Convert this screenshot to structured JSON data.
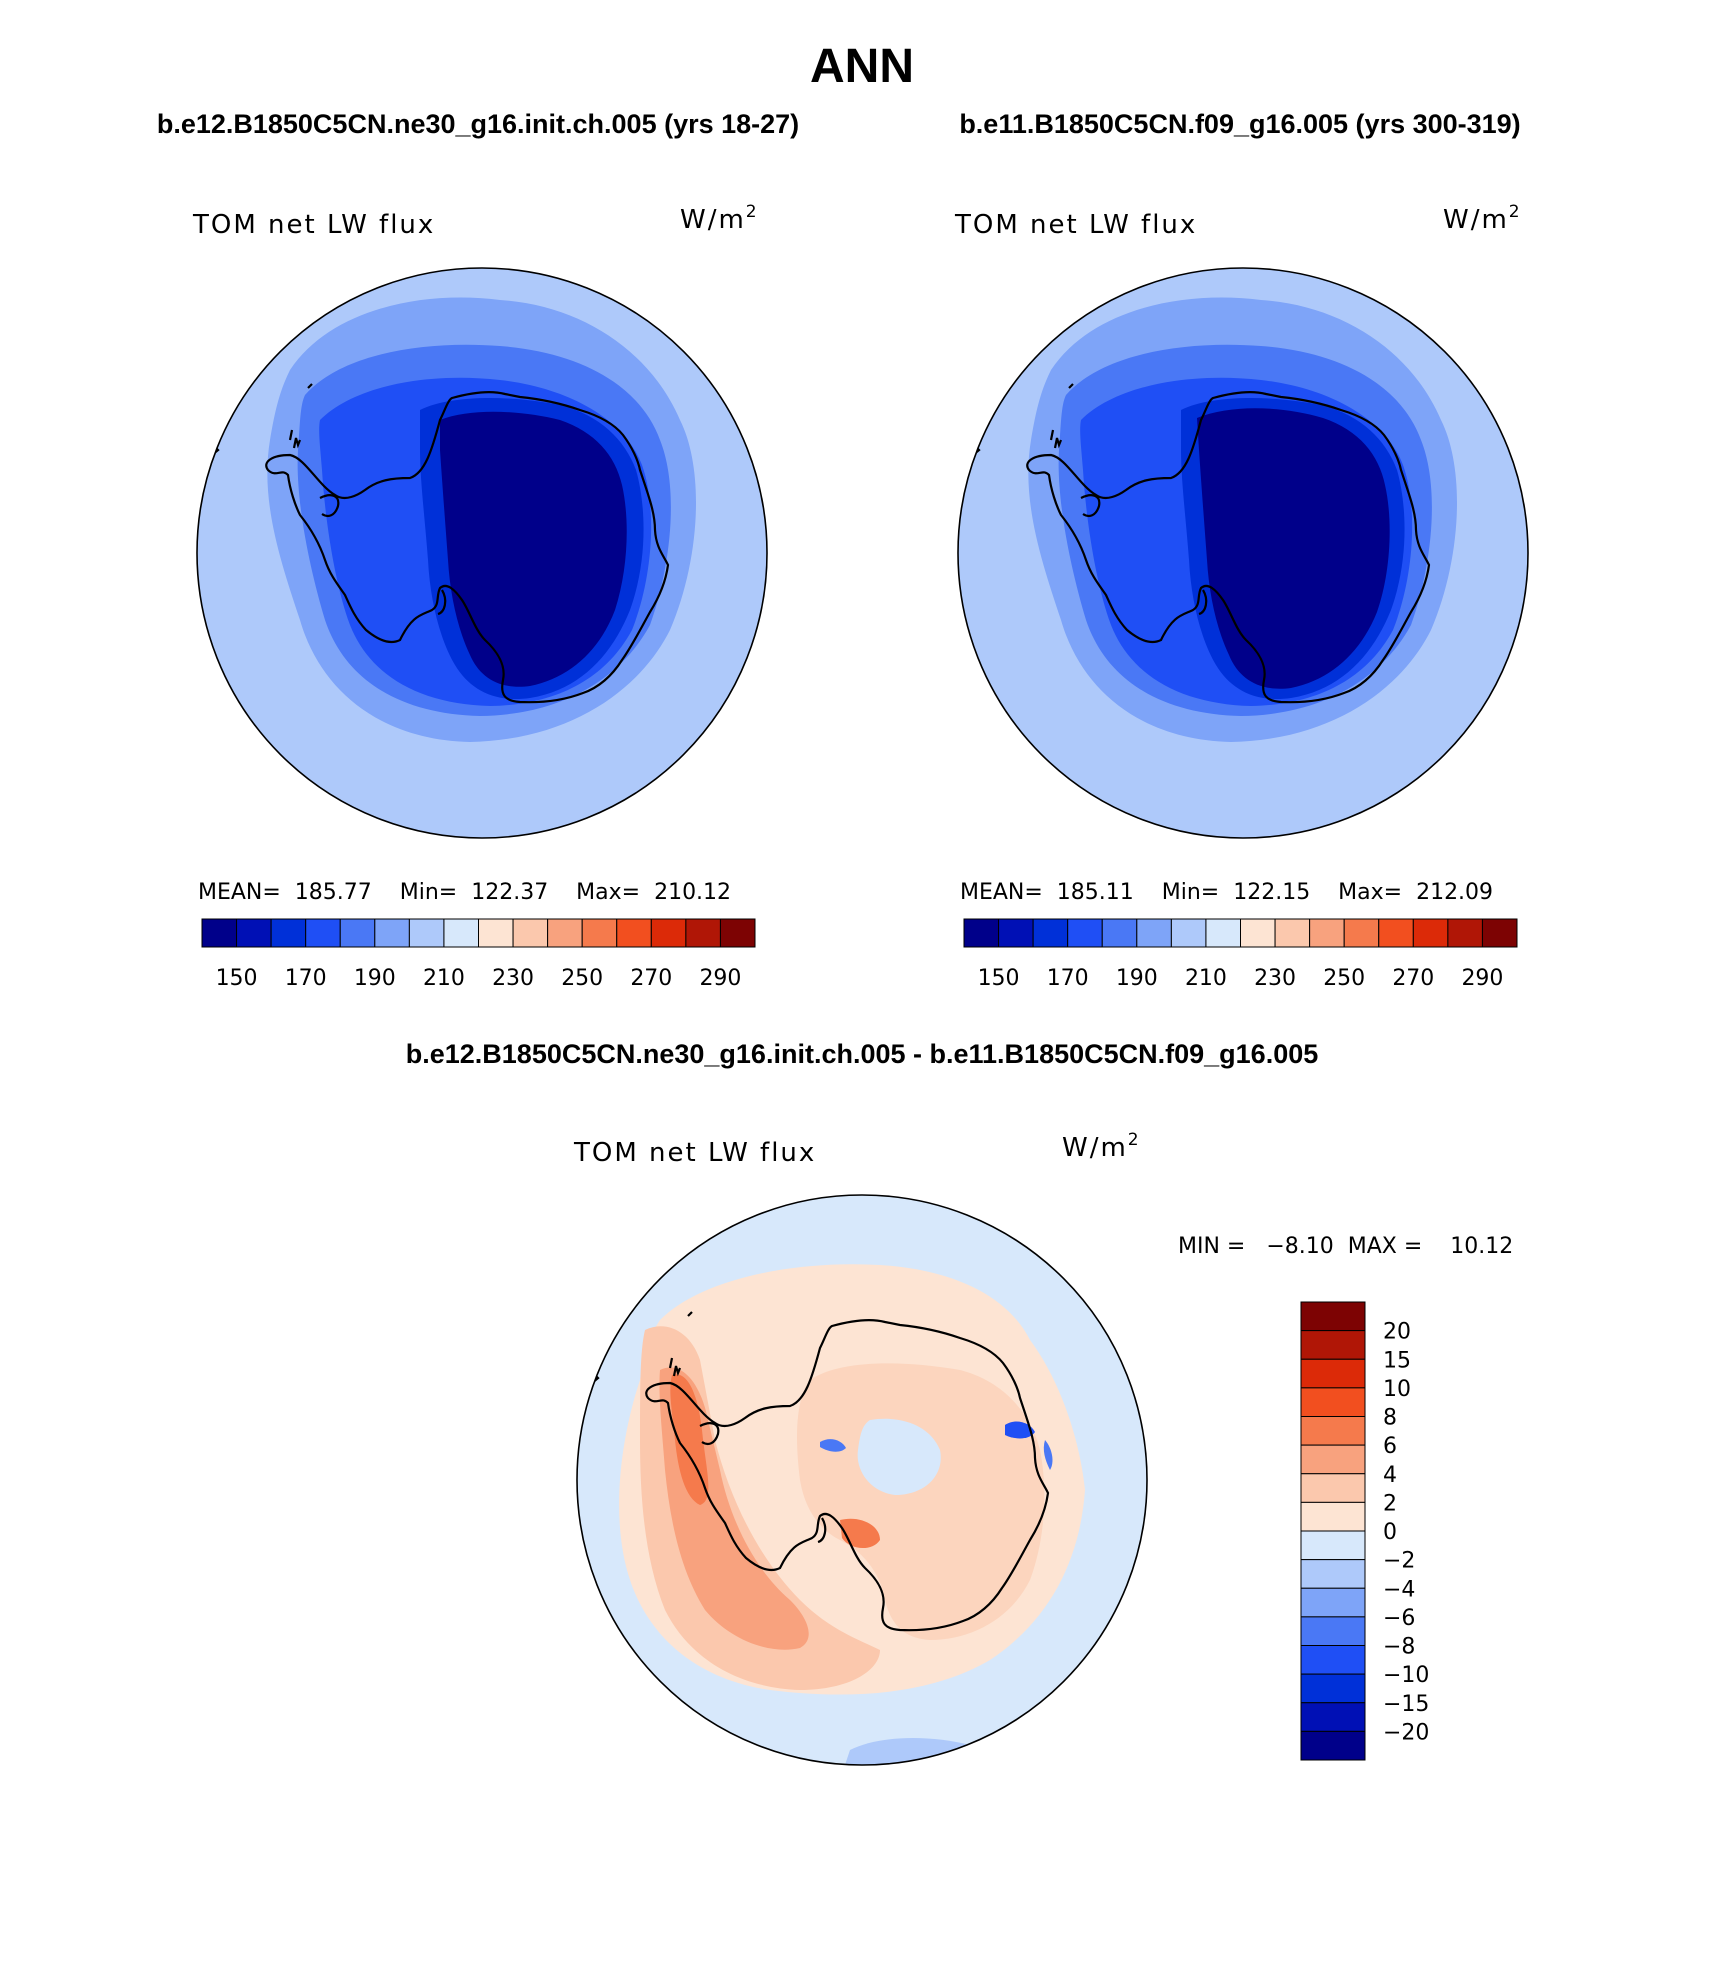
{
  "figure": {
    "title": "ANN",
    "left_case": "b.e12.B1850C5CN.ne30_g16.init.ch.005 (yrs 18-27)",
    "right_case": "b.e11.B1850C5CN.f09_g16.005 (yrs 300-319)",
    "diff_case": "b.e12.B1850C5CN.ne30_g16.init.ch.005 - b.e11.B1850C5CN.f09_g16.005"
  },
  "panels": {
    "left": {
      "variable": "TOM net LW flux",
      "units_base": "W/m",
      "units_exp": "2",
      "stats": "MEAN=  185.77    Min=  122.37    Max=  210.12"
    },
    "right": {
      "variable": "TOM net LW flux",
      "units_base": "W/m",
      "units_exp": "2",
      "stats": "MEAN=  185.11    Min=  122.15    Max=  212.09"
    },
    "diff": {
      "variable": "TOM net LW flux",
      "units_base": "W/m",
      "units_exp": "2",
      "stats": "MIN =   −8.10  MAX =    10.12"
    }
  },
  "colorbars": {
    "abs": {
      "colors": [
        "#00008a",
        "#0010b5",
        "#0030d8",
        "#1f4ff5",
        "#4a78f5",
        "#7ea4f8",
        "#aec9fa",
        "#d7e8fb",
        "#fde4d3",
        "#fbc8ad",
        "#f8a27e",
        "#f57a4c",
        "#f24f1f",
        "#dc2a08",
        "#b01606",
        "#7d0303"
      ],
      "tick_labels": [
        "150",
        "170",
        "190",
        "210",
        "230",
        "250",
        "270",
        "290"
      ]
    },
    "diff": {
      "colors_top_to_bottom": [
        "#7d0303",
        "#b01606",
        "#dc2a08",
        "#f24f1f",
        "#f57a4c",
        "#f8a27e",
        "#fbc8ad",
        "#fde4d3",
        "#d7e8fb",
        "#aec9fa",
        "#7ea4f8",
        "#4a78f5",
        "#1f4ff5",
        "#0030d8",
        "#0010b5",
        "#00008a"
      ],
      "tick_labels": [
        "20",
        "15",
        "10",
        "8",
        "6",
        "4",
        "2",
        "0",
        "−2",
        "−4",
        "−6",
        "−8",
        "−10",
        "−15",
        "−20"
      ]
    }
  }
}
